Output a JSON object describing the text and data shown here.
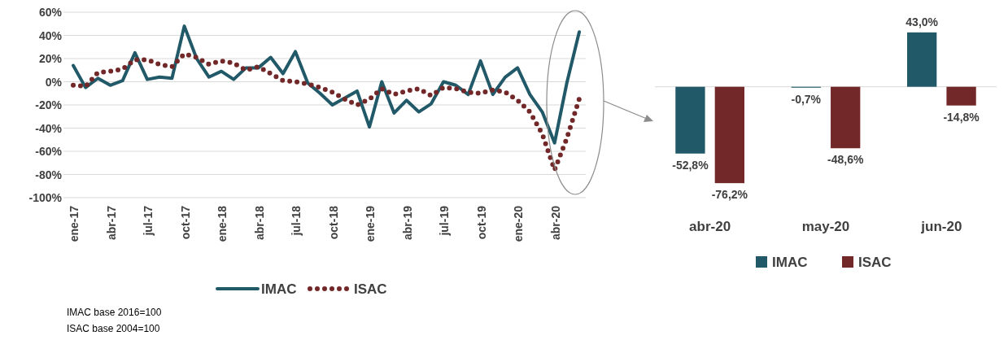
{
  "chart_data": [
    {
      "type": "line",
      "categories": [
        "ene-17",
        null,
        null,
        "abr-17",
        null,
        null,
        "jul-17",
        null,
        null,
        "oct-17",
        null,
        null,
        "ene-18",
        null,
        null,
        "abr-18",
        null,
        null,
        "jul-18",
        null,
        null,
        "oct-18",
        null,
        null,
        "ene-19",
        null,
        null,
        "abr-19",
        null,
        null,
        "jul-19",
        null,
        null,
        "oct-19",
        null,
        null,
        "ene-20",
        null,
        null,
        "abr-20",
        null,
        null
      ],
      "series": [
        {
          "name": "IMAC",
          "color": "#215968",
          "line_style": "solid",
          "values": [
            14,
            -5,
            3,
            -3,
            1,
            25,
            2,
            4,
            3,
            48,
            20,
            4,
            9,
            2,
            12,
            12,
            21,
            7,
            26,
            -1,
            -10,
            -20,
            -14,
            -8,
            -39,
            0,
            -27,
            -16,
            -26,
            -19,
            0,
            -3,
            -11,
            18,
            -11,
            4,
            12,
            -11,
            -26,
            -52.8,
            -0.7,
            43.0
          ]
        },
        {
          "name": "ISAC",
          "color": "#722828",
          "line_style": "dotted",
          "values": [
            -3,
            -4,
            8,
            9,
            11,
            19,
            19,
            15,
            13,
            24,
            21,
            15,
            18,
            16,
            10,
            13,
            7,
            1,
            0,
            -2,
            -5,
            -9,
            -15,
            -20,
            -15,
            -6,
            -11,
            -8,
            -6,
            -12,
            -5,
            -6,
            -9,
            -10,
            -7,
            -9,
            -16,
            -26,
            -45,
            -76.2,
            -48.6,
            -14.8
          ]
        }
      ],
      "ylim": [
        -100,
        60
      ],
      "yticks": [
        {
          "value": 60,
          "label": "60%"
        },
        {
          "value": 40,
          "label": "40%"
        },
        {
          "value": 20,
          "label": "20%"
        },
        {
          "value": 0,
          "label": "0%"
        },
        {
          "value": -20,
          "label": "-20%"
        },
        {
          "value": -40,
          "label": "-40%"
        },
        {
          "value": -60,
          "label": "-60%"
        },
        {
          "value": -80,
          "label": "-80%"
        },
        {
          "value": -100,
          "label": "-100%"
        }
      ],
      "grid": "y",
      "legend": "bottom",
      "annotations": [
        "IMAC base 2016=100",
        "ISAC base 2004=100"
      ]
    },
    {
      "type": "bar",
      "categories": [
        "abr-20",
        "may-20",
        "jun-20"
      ],
      "series": [
        {
          "name": "IMAC",
          "color": "#215968",
          "values": [
            -52.8,
            -0.7,
            43.0
          ],
          "value_labels": [
            "-52,8%",
            "-0,7%",
            "43,0%"
          ]
        },
        {
          "name": "ISAC",
          "color": "#722828",
          "values": [
            -76.2,
            -48.6,
            -14.8
          ],
          "value_labels": [
            "-76,2%",
            "-48,6%",
            "-14,8%"
          ]
        }
      ],
      "legend": "bottom",
      "tick_labels": "x"
    }
  ]
}
